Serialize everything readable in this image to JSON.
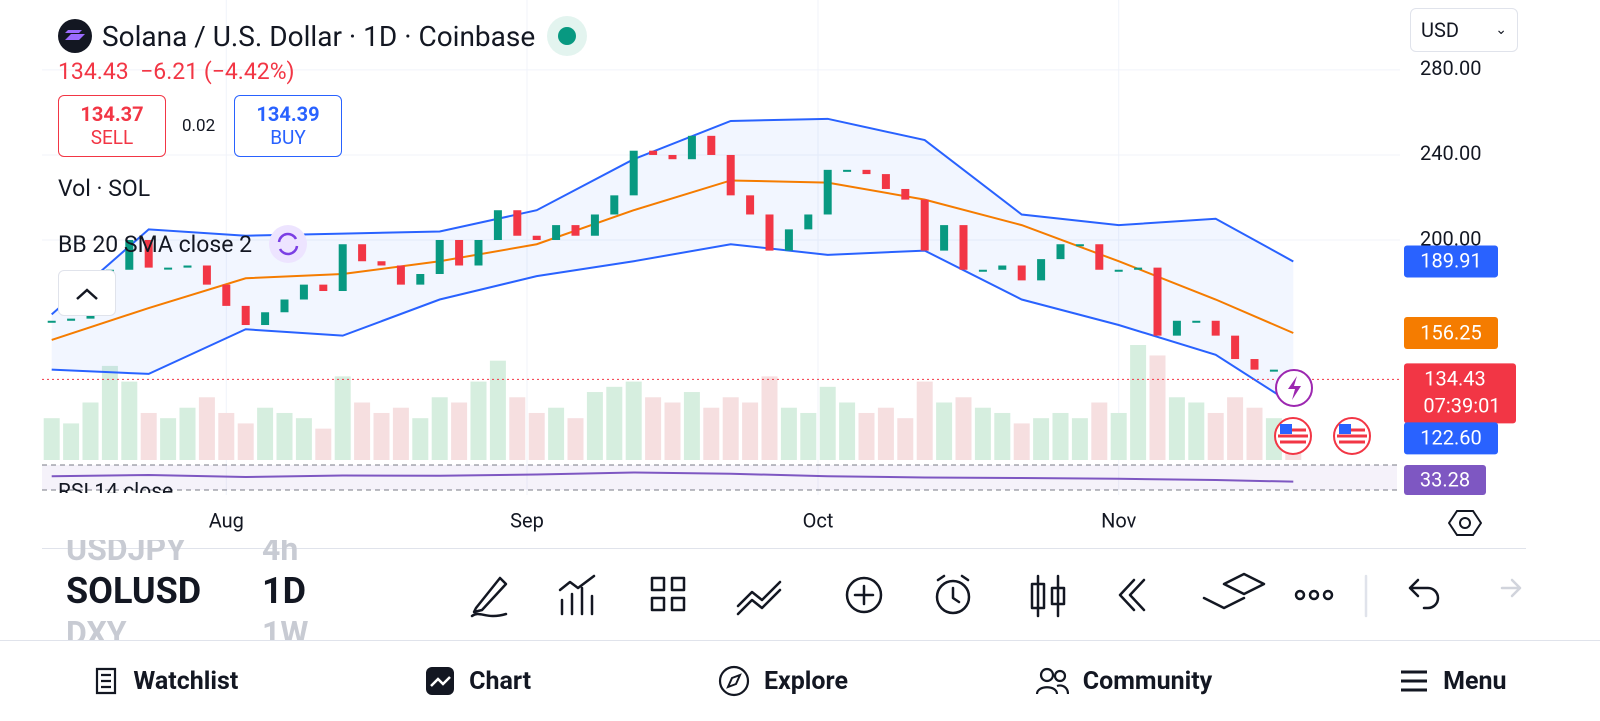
{
  "header": {
    "title": "Solana / U.S. Dollar · 1D · Coinbase",
    "price": "134.43",
    "change": "−6.21 (−4.42%)",
    "sell": {
      "price": "134.37",
      "label": "SELL"
    },
    "spread": "0.02",
    "buy": {
      "price": "134.39",
      "label": "BUY"
    },
    "currency": "USD"
  },
  "indicators": {
    "volume": "Vol · SOL",
    "bb": "BB 20 SMA close 2",
    "rsi": "RSI 14 close"
  },
  "price": {
    "type": "candlestick",
    "ylim": [
      96.5,
      312.9
    ],
    "yticks": [
      {
        "value": 200,
        "label": "200.00"
      },
      {
        "value": 240,
        "label": "240.00"
      },
      {
        "value": 280,
        "label": "280.00"
      }
    ],
    "xlim": [
      -1,
      139
    ],
    "xticks": [
      {
        "value": 18,
        "label": "Aug"
      },
      {
        "value": 49,
        "label": "Sep"
      },
      {
        "value": 79,
        "label": "Oct"
      },
      {
        "value": 110,
        "label": "Nov"
      }
    ],
    "x": [
      0,
      2,
      4,
      6,
      8,
      10,
      12,
      14,
      16,
      18,
      20,
      22,
      24,
      26,
      28,
      30,
      32,
      34,
      36,
      38,
      40,
      42,
      44,
      46,
      48,
      50,
      52,
      54,
      56,
      58,
      60,
      62,
      64,
      66,
      68,
      70,
      72,
      74,
      76,
      78,
      80,
      82,
      84,
      86,
      88,
      90,
      92,
      94,
      96,
      98,
      100,
      102,
      104,
      106,
      108,
      110,
      112,
      114,
      116,
      118,
      120,
      122,
      124,
      126,
      128
    ],
    "closes": [
      162,
      163,
      172,
      186,
      200,
      187,
      187,
      188,
      179,
      169,
      160,
      166,
      172,
      179,
      176,
      198,
      190,
      188,
      179,
      184,
      200,
      188,
      200,
      214,
      202,
      200,
      207,
      202,
      212,
      221,
      242,
      240,
      238,
      249,
      240,
      221,
      212,
      195,
      205,
      212,
      233,
      233,
      231,
      224,
      219,
      195,
      207,
      186,
      186,
      188,
      181,
      191,
      198,
      198,
      186,
      186,
      187,
      155,
      162,
      162,
      155,
      144,
      139,
      139,
      134.43
    ],
    "volume": [
      40,
      35,
      55,
      90,
      75,
      45,
      40,
      50,
      60,
      45,
      35,
      50,
      45,
      40,
      30,
      80,
      55,
      45,
      50,
      40,
      60,
      55,
      75,
      95,
      60,
      45,
      50,
      40,
      65,
      70,
      75,
      60,
      55,
      65,
      50,
      60,
      55,
      80,
      50,
      45,
      70,
      55,
      45,
      50,
      40,
      75,
      55,
      60,
      50,
      45,
      35,
      40,
      45,
      40,
      55,
      45,
      110,
      100,
      60,
      55,
      45,
      60,
      50,
      40,
      30
    ],
    "countdown": "07:39:01",
    "bands": {
      "x": [
        0,
        10,
        20,
        30,
        40,
        50,
        60,
        70,
        80,
        90,
        100,
        110,
        120,
        128
      ],
      "upper": {
        "values": [
          165,
          205,
          202,
          203,
          204,
          214,
          238,
          256,
          257,
          247,
          212,
          207,
          210,
          189.91
        ]
      },
      "middle": {
        "values": [
          153,
          168,
          182,
          184,
          190,
          198,
          214,
          228,
          227,
          219,
          207,
          190,
          172,
          156.25
        ]
      },
      "lower": {
        "values": [
          139,
          137,
          158,
          155,
          172,
          183,
          190,
          198,
          193,
          195,
          172,
          160,
          146,
          122.6
        ],
        "last_label": "122.60"
      }
    },
    "rsi": {
      "ylim": [
        0,
        100
      ],
      "values": [
        55,
        60,
        52,
        58,
        57,
        62,
        70,
        65,
        55,
        50,
        48,
        45,
        40,
        33.28
      ]
    }
  },
  "watchlist": [
    {
      "symbol": "USDJPY",
      "interval": "4h"
    },
    {
      "symbol": "SOLUSD",
      "interval": "1D"
    },
    {
      "symbol": "DXY",
      "interval": "1W"
    }
  ],
  "nav": [
    "Watchlist",
    "Chart",
    "Explore",
    "Community",
    "Menu"
  ]
}
